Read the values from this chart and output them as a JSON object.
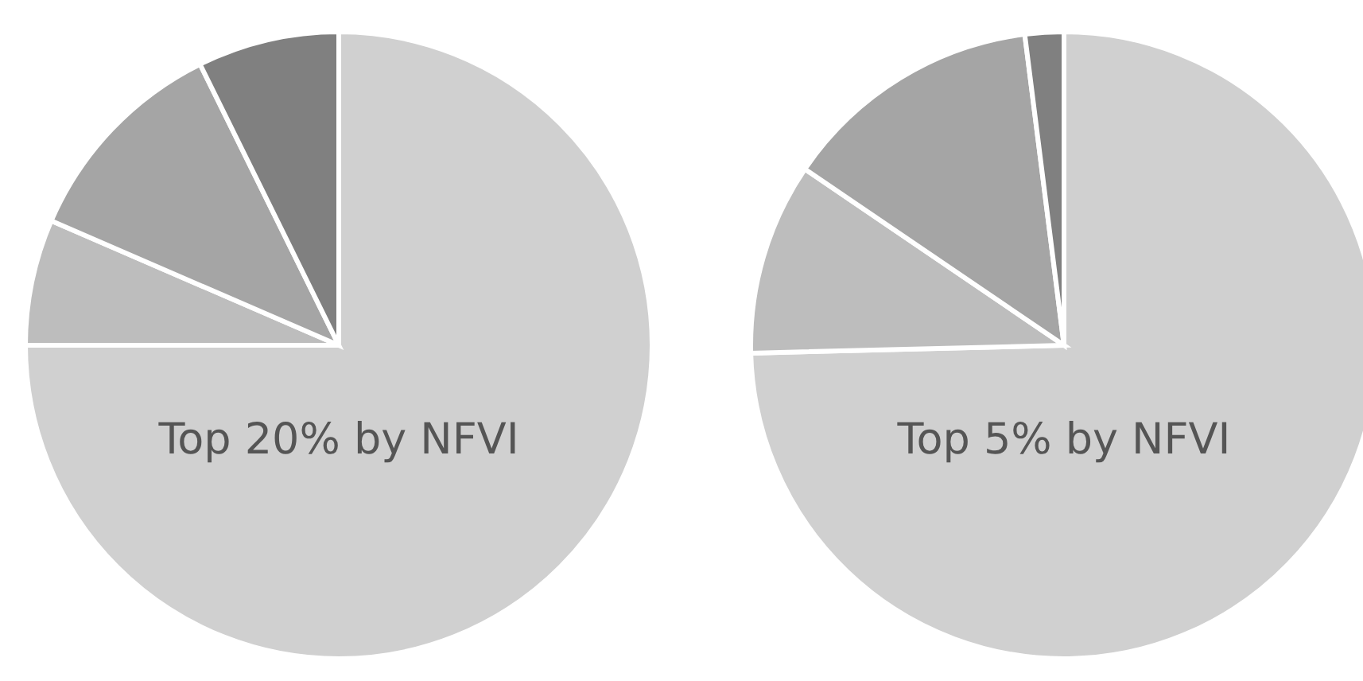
{
  "chart_data": [
    {
      "type": "pie",
      "categories": [
        "Top 20% by NFVI",
        null,
        null,
        null
      ],
      "values": [
        75,
        6.5,
        11.2,
        7.3
      ],
      "colors": [
        "#d0d0d0",
        "#bdbdbd",
        "#a5a5a5",
        "#808080"
      ],
      "legend": false
    },
    {
      "type": "pie",
      "categories": [
        "Top 5% by NFVI",
        null,
        null,
        null
      ],
      "values": [
        74.6,
        9.9,
        13.5,
        2.0
      ],
      "colors": [
        "#d0d0d0",
        "#b3b3b3",
        "#a0a0a0",
        "#7a7a7a"
      ],
      "legend": false
    }
  ]
}
